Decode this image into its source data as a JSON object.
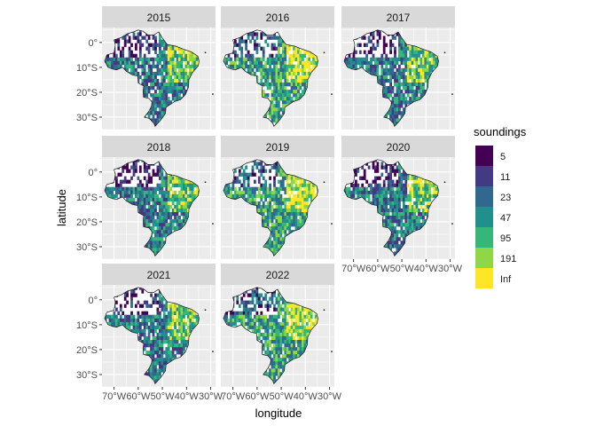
{
  "chart_data": {
    "type": "heatmap",
    "chart_kind": "faceted choropleth map",
    "title": "",
    "xlabel": "longitude",
    "ylabel": "latitude",
    "facets": [
      "2015",
      "2016",
      "2017",
      "2018",
      "2019",
      "2020",
      "2021",
      "2022"
    ],
    "facet_columns": 3,
    "x_axis": {
      "range": [
        -75,
        -28
      ],
      "ticks": [
        -70,
        -60,
        -50,
        -40,
        -30
      ],
      "tick_labels": [
        "70°W",
        "60°W",
        "50°W",
        "40°W",
        "30°W"
      ]
    },
    "y_axis": {
      "range": [
        -35,
        6
      ],
      "ticks": [
        0,
        -10,
        -20,
        -30
      ],
      "tick_labels": [
        "0°",
        "10°S",
        "20°S",
        "30°S"
      ]
    },
    "grid": true,
    "legend": {
      "title": "soundings",
      "placement": "right",
      "labels": [
        "5",
        "11",
        "23",
        "47",
        "95",
        "191",
        "Inf"
      ],
      "colors": [
        "#440154",
        "#443A83",
        "#31688E",
        "#21908C",
        "#35B779",
        "#8FD744",
        "#FDE725"
      ]
    },
    "description_colors": {
      "panel_background": "#EBEBEB",
      "strip_background": "#D9D9D9",
      "gridline": "#FFFFFF",
      "land_empty": "#FFFFFF",
      "outline": "#1a1a1a"
    }
  }
}
